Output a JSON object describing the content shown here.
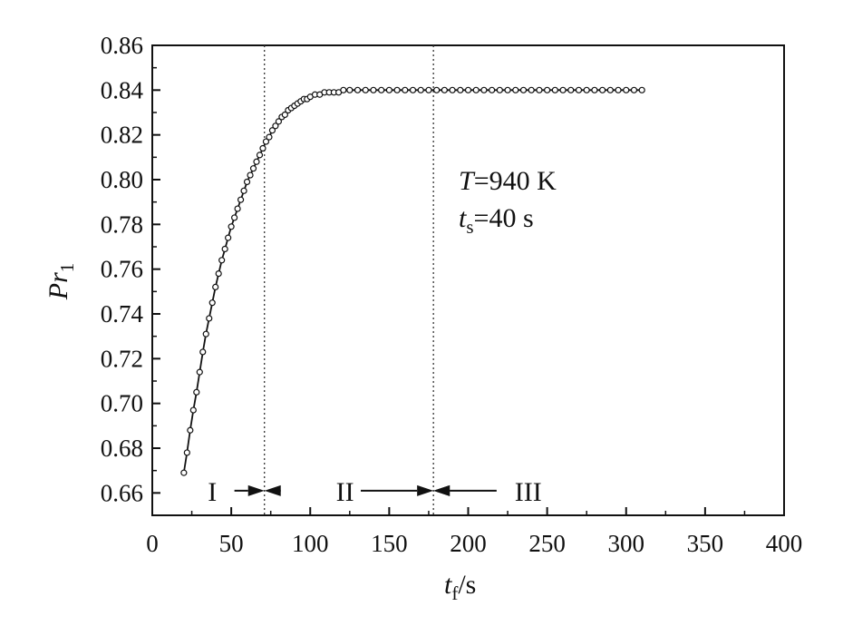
{
  "chart_data": {
    "type": "line",
    "xlabel": {
      "main": "t",
      "sub": "f",
      "unit": "/s"
    },
    "ylabel": {
      "main": "Pr",
      "sub": "1"
    },
    "xlim": [
      0,
      400
    ],
    "ylim": [
      0.65,
      0.86
    ],
    "x_ticks": [
      0,
      50,
      100,
      150,
      200,
      250,
      300,
      350,
      400
    ],
    "y_ticks": [
      0.66,
      0.68,
      0.7,
      0.72,
      0.74,
      0.76,
      0.78,
      0.8,
      0.82,
      0.84,
      0.86
    ],
    "x_tick_labels": [
      "0",
      "50",
      "100",
      "150",
      "200",
      "250",
      "300",
      "350",
      "400"
    ],
    "y_tick_labels": [
      "0.66",
      "0.68",
      "0.70",
      "0.72",
      "0.74",
      "0.76",
      "0.78",
      "0.80",
      "0.82",
      "0.84",
      "0.86"
    ],
    "grid": false,
    "series": [
      {
        "marker": "open-circle",
        "x": [
          20,
          22,
          24,
          26,
          28,
          30,
          32,
          34,
          36,
          38,
          40,
          42,
          44,
          46,
          48,
          50,
          52,
          54,
          56,
          58,
          60,
          62,
          64,
          66,
          68,
          70,
          72,
          74,
          76,
          78,
          80,
          82,
          84,
          86,
          88,
          90,
          92,
          94,
          96,
          98,
          100,
          103,
          106,
          109,
          112,
          115,
          118,
          121,
          125,
          130,
          135,
          140,
          145,
          150,
          155,
          160,
          165,
          170,
          175,
          180,
          185,
          190,
          195,
          200,
          205,
          210,
          215,
          220,
          225,
          230,
          235,
          240,
          245,
          250,
          255,
          260,
          265,
          270,
          275,
          280,
          285,
          290,
          295,
          300,
          305,
          310
        ],
        "y": [
          0.669,
          0.678,
          0.688,
          0.697,
          0.705,
          0.714,
          0.723,
          0.731,
          0.738,
          0.745,
          0.752,
          0.758,
          0.764,
          0.769,
          0.774,
          0.779,
          0.783,
          0.787,
          0.791,
          0.795,
          0.799,
          0.802,
          0.805,
          0.808,
          0.811,
          0.814,
          0.817,
          0.819,
          0.822,
          0.824,
          0.826,
          0.828,
          0.829,
          0.831,
          0.832,
          0.833,
          0.834,
          0.835,
          0.836,
          0.836,
          0.837,
          0.838,
          0.838,
          0.839,
          0.839,
          0.839,
          0.839,
          0.84,
          0.84,
          0.84,
          0.84,
          0.84,
          0.84,
          0.84,
          0.84,
          0.84,
          0.84,
          0.84,
          0.84,
          0.84,
          0.84,
          0.84,
          0.84,
          0.84,
          0.84,
          0.84,
          0.84,
          0.84,
          0.84,
          0.84,
          0.84,
          0.84,
          0.84,
          0.84,
          0.84,
          0.84,
          0.84,
          0.84,
          0.84,
          0.84,
          0.84,
          0.84,
          0.84,
          0.84,
          0.84,
          0.84
        ]
      }
    ],
    "vertical_lines": [
      {
        "x": 71,
        "style": "dotted"
      },
      {
        "x": 178,
        "style": "dotted"
      }
    ],
    "annotations": [
      {
        "text": "I",
        "x": 38,
        "y": 0.661
      },
      {
        "text": "II",
        "x": 122,
        "y": 0.661
      },
      {
        "text": "III",
        "x": 238,
        "y": 0.661
      },
      {
        "text": "T=940 K",
        "x": 195,
        "y": 0.798
      },
      {
        "text": "ts=40 s",
        "x": 195,
        "y": 0.78
      }
    ],
    "region_arrows": [
      {
        "from": 52,
        "to": 71
      },
      {
        "from": 76,
        "to": 71
      },
      {
        "from": 132,
        "to": 178
      },
      {
        "from": 184,
        "to": 178
      },
      {
        "from": 218,
        "to": 178
      }
    ],
    "info_box": {
      "temperature": {
        "symbol": "T",
        "value": "=940 K"
      },
      "soak_time": {
        "symbol": "t",
        "sub": "s",
        "value": "=40 s"
      }
    },
    "region_labels": [
      "I",
      "II",
      "III"
    ]
  }
}
